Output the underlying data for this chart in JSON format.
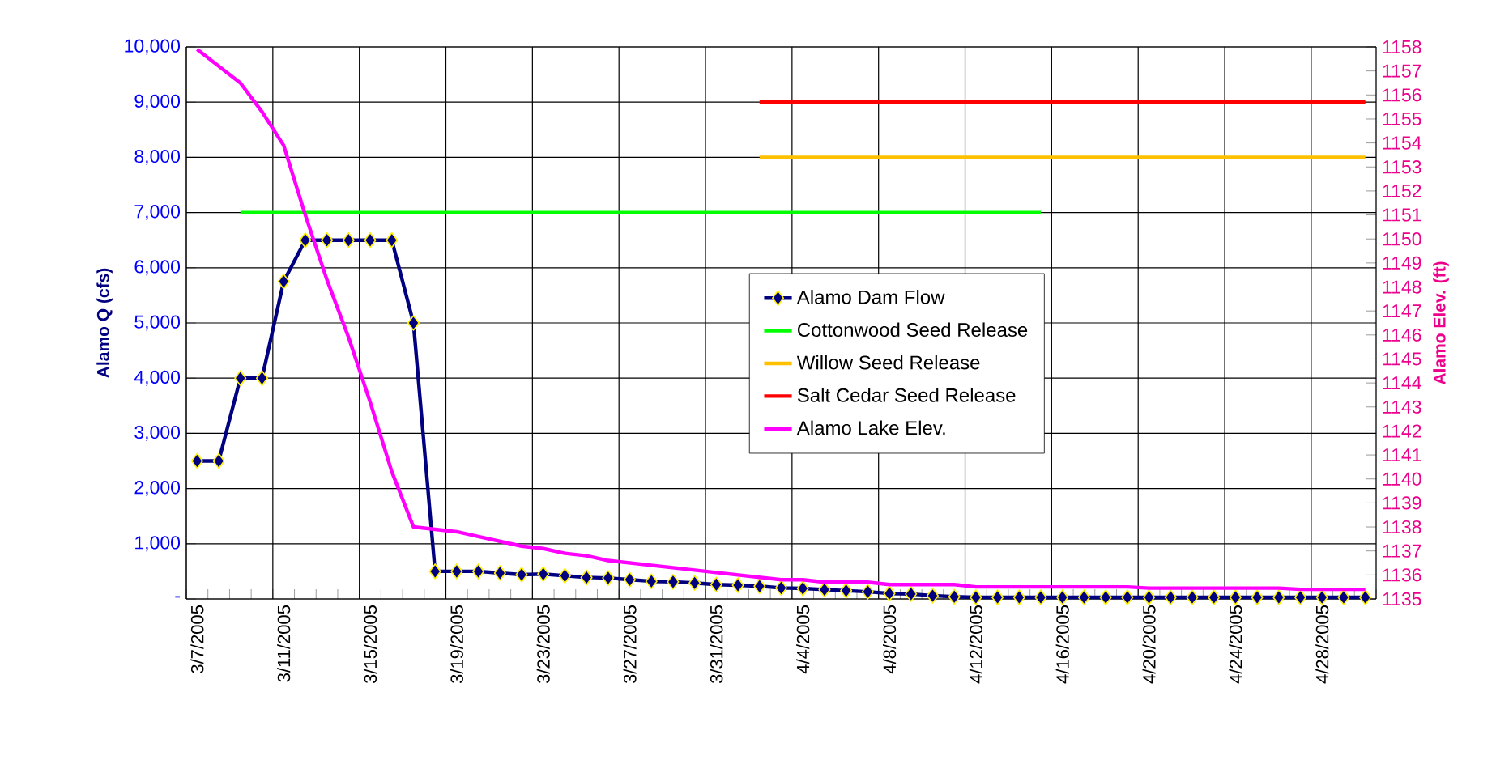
{
  "chart_data": {
    "type": "line",
    "categories": [
      "3/7/2005",
      null,
      null,
      null,
      "3/11/2005",
      null,
      null,
      null,
      "3/15/2005",
      null,
      null,
      null,
      "3/19/2005",
      null,
      null,
      null,
      "3/23/2005",
      null,
      null,
      null,
      "3/27/2005",
      null,
      null,
      null,
      "3/31/2005",
      null,
      null,
      null,
      "4/4/2005",
      null,
      null,
      null,
      "4/8/2005",
      null,
      null,
      null,
      "4/12/2005",
      null,
      null,
      null,
      "4/16/2005",
      null,
      null,
      null,
      "4/20/2005",
      null,
      null,
      null,
      "4/24/2005",
      null,
      null,
      null,
      "4/28/2005",
      null,
      null
    ],
    "ylabel": "Alamo Q (cfs)",
    "y2label": "Alamo Elev. (ft)",
    "ylim": [
      0,
      10000
    ],
    "yticks": [
      {
        "value": 0,
        "label": "-"
      },
      {
        "value": 1000,
        "label": "1,000"
      },
      {
        "value": 2000,
        "label": "2,000"
      },
      {
        "value": 3000,
        "label": "3,000"
      },
      {
        "value": 4000,
        "label": "4,000"
      },
      {
        "value": 5000,
        "label": "5,000"
      },
      {
        "value": 6000,
        "label": "6,000"
      },
      {
        "value": 7000,
        "label": "7,000"
      },
      {
        "value": 8000,
        "label": "8,000"
      },
      {
        "value": 9000,
        "label": "9,000"
      },
      {
        "value": 10000,
        "label": "10,000"
      }
    ],
    "y2lim": [
      1135,
      1158
    ],
    "y2ticks": [
      1135,
      1136,
      1137,
      1138,
      1139,
      1140,
      1141,
      1142,
      1143,
      1144,
      1145,
      1146,
      1147,
      1148,
      1149,
      1150,
      1151,
      1152,
      1153,
      1154,
      1155,
      1156,
      1157,
      1158
    ],
    "grid": true,
    "legend": "center",
    "series": [
      {
        "name": "Alamo Dam Flow",
        "color": "#000080",
        "marker": "diamond",
        "values": [
          2500,
          2500,
          4000,
          4000,
          5750,
          6500,
          6500,
          6500,
          6500,
          6500,
          5000,
          500,
          500,
          500,
          470,
          440,
          450,
          420,
          390,
          380,
          350,
          320,
          310,
          290,
          260,
          250,
          230,
          200,
          190,
          170,
          150,
          130,
          100,
          90,
          60,
          40,
          30,
          30,
          30,
          30,
          30,
          30,
          30,
          30,
          30,
          30,
          30,
          30,
          30,
          30,
          30,
          30,
          30,
          30,
          30
        ]
      },
      {
        "name": "Cottonwood Seed Release",
        "color": "#00ff00",
        "marker": "none",
        "values": [
          null,
          null,
          7000,
          7000,
          7000,
          7000,
          7000,
          7000,
          7000,
          7000,
          7000,
          7000,
          7000,
          7000,
          7000,
          7000,
          7000,
          7000,
          7000,
          7000,
          7000,
          7000,
          7000,
          7000,
          7000,
          7000,
          7000,
          7000,
          7000,
          7000,
          7000,
          7000,
          7000,
          7000,
          7000,
          7000,
          7000,
          7000,
          7000,
          7000,
          null,
          null,
          null,
          null,
          null,
          null,
          null,
          null,
          null,
          null,
          null,
          null,
          null,
          null,
          null
        ]
      },
      {
        "name": "Willow Seed Release",
        "color": "#ffc000",
        "marker": "none",
        "values": [
          null,
          null,
          null,
          null,
          null,
          null,
          null,
          null,
          null,
          null,
          null,
          null,
          null,
          null,
          null,
          null,
          null,
          null,
          null,
          null,
          null,
          null,
          null,
          null,
          null,
          null,
          8000,
          8000,
          8000,
          8000,
          8000,
          8000,
          8000,
          8000,
          8000,
          8000,
          8000,
          8000,
          8000,
          8000,
          8000,
          8000,
          8000,
          8000,
          8000,
          8000,
          8000,
          8000,
          8000,
          8000,
          8000,
          8000,
          8000,
          8000,
          8000
        ]
      },
      {
        "name": "Salt Cedar Seed Release",
        "color": "#ff0000",
        "marker": "none",
        "values": [
          null,
          null,
          null,
          null,
          null,
          null,
          null,
          null,
          null,
          null,
          null,
          null,
          null,
          null,
          null,
          null,
          null,
          null,
          null,
          null,
          null,
          null,
          null,
          null,
          null,
          null,
          9000,
          9000,
          9000,
          9000,
          9000,
          9000,
          9000,
          9000,
          9000,
          9000,
          9000,
          9000,
          9000,
          9000,
          9000,
          9000,
          9000,
          9000,
          9000,
          9000,
          9000,
          9000,
          9000,
          9000,
          9000,
          9000,
          9000,
          9000,
          9000
        ]
      },
      {
        "name": "Alamo Lake Elev.",
        "color": "#ff00ff",
        "marker": "none",
        "axis": "y2",
        "values": [
          1157.9,
          1157.2,
          1156.5,
          1155.3,
          1153.9,
          1151.0,
          1148.3,
          1145.9,
          1143.2,
          1140.3,
          1138.0,
          1137.9,
          1137.8,
          1137.6,
          1137.4,
          1137.2,
          1137.1,
          1136.9,
          1136.8,
          1136.6,
          1136.5,
          1136.4,
          1136.3,
          1136.2,
          1136.1,
          1136.0,
          1135.9,
          1135.8,
          1135.8,
          1135.7,
          1135.7,
          1135.7,
          1135.6,
          1135.6,
          1135.6,
          1135.6,
          1135.5,
          1135.5,
          1135.5,
          1135.5,
          1135.5,
          1135.5,
          1135.5,
          1135.5,
          1135.45,
          1135.45,
          1135.45,
          1135.45,
          1135.45,
          1135.45,
          1135.45,
          1135.4,
          1135.4,
          1135.4,
          1135.4
        ]
      }
    ]
  }
}
